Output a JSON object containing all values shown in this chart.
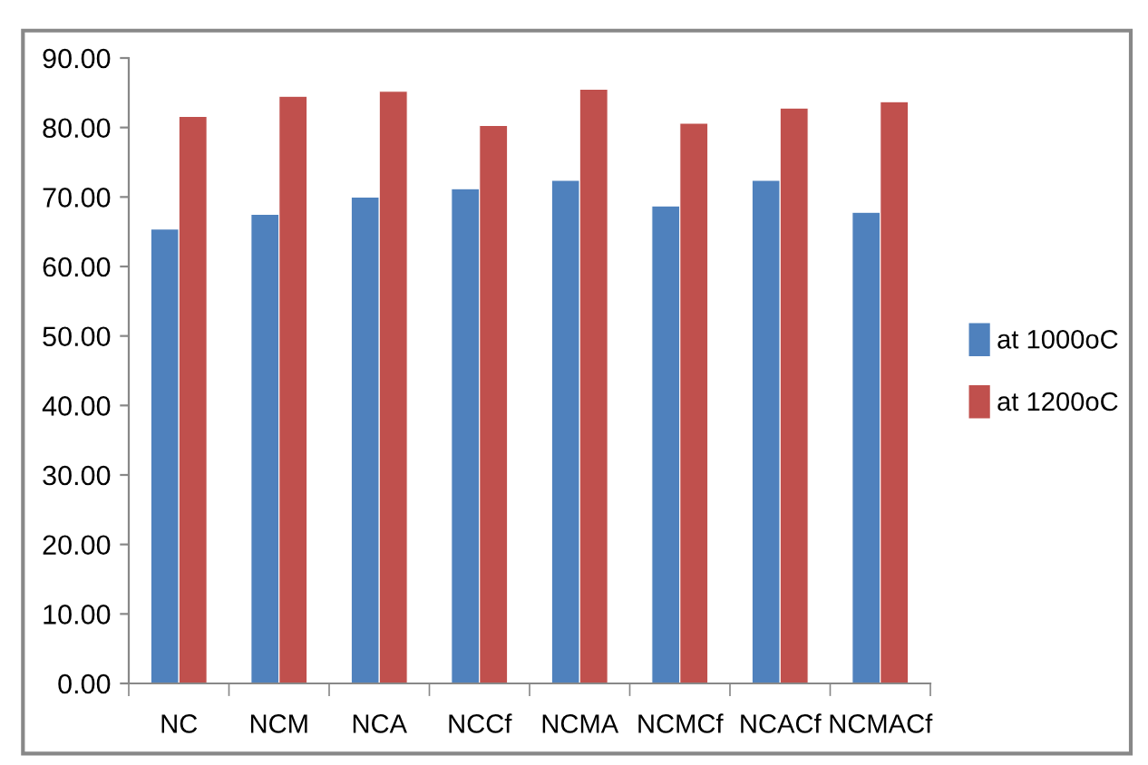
{
  "chart_data": {
    "type": "bar",
    "categories": [
      "NC",
      "NCM",
      "NCA",
      "NCCf",
      "NCMA",
      "NCMCf",
      "NCACf",
      "NCMACf"
    ],
    "series": [
      {
        "name": "at 1000oC",
        "color": "#4f81bd",
        "values": [
          65.4,
          67.5,
          70.0,
          71.2,
          72.4,
          68.7,
          72.4,
          67.8
        ]
      },
      {
        "name": "at 1200oC",
        "color": "#c0504d",
        "values": [
          81.6,
          84.5,
          85.2,
          80.3,
          85.5,
          80.6,
          82.8,
          83.7
        ]
      }
    ],
    "ylim": [
      0,
      90
    ],
    "yticks": [
      {
        "value": 0,
        "label": "0.00"
      },
      {
        "value": 10,
        "label": "10.00"
      },
      {
        "value": 20,
        "label": "20.00"
      },
      {
        "value": 30,
        "label": "30.00"
      },
      {
        "value": 40,
        "label": "40.00"
      },
      {
        "value": 50,
        "label": "50.00"
      },
      {
        "value": 60,
        "label": "60.00"
      },
      {
        "value": 70,
        "label": "70.00"
      },
      {
        "value": 80,
        "label": "80.00"
      },
      {
        "value": 90,
        "label": "90.00"
      }
    ],
    "grid": false,
    "legend": "right"
  }
}
